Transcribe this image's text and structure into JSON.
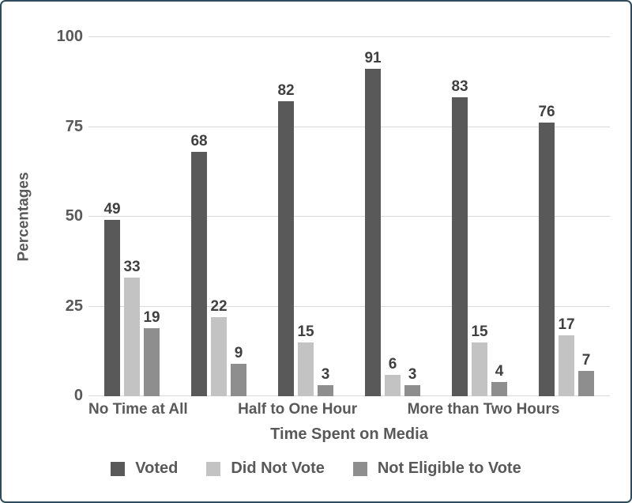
{
  "frame": {
    "border_color": "#2e4c5e",
    "background_color": "#ffffff"
  },
  "chart_data": {
    "type": "bar",
    "title": "",
    "xlabel": "Time Spent on Media",
    "ylabel": "Percentages",
    "ylim": [
      0,
      100
    ],
    "yticks": [
      0,
      25,
      50,
      75,
      100
    ],
    "grid": true,
    "gridline_color": "#d9d9d9",
    "axis_text_color": "#595959",
    "value_label_color": "#404040",
    "legend_position": "bottom",
    "categories": [
      "No Time at All",
      "",
      "Half to One Hour",
      "",
      "More than Two Hours",
      ""
    ],
    "series": [
      {
        "name": "Voted",
        "color": "#595959",
        "values": [
          49,
          68,
          82,
          91,
          83,
          76
        ]
      },
      {
        "name": "Did Not Vote",
        "color": "#c3c3c3",
        "values": [
          33,
          22,
          15,
          6,
          15,
          17
        ]
      },
      {
        "name": "Not Eligible to Vote",
        "color": "#8e8e8e",
        "values": [
          19,
          9,
          3,
          3,
          4,
          7
        ]
      }
    ]
  }
}
